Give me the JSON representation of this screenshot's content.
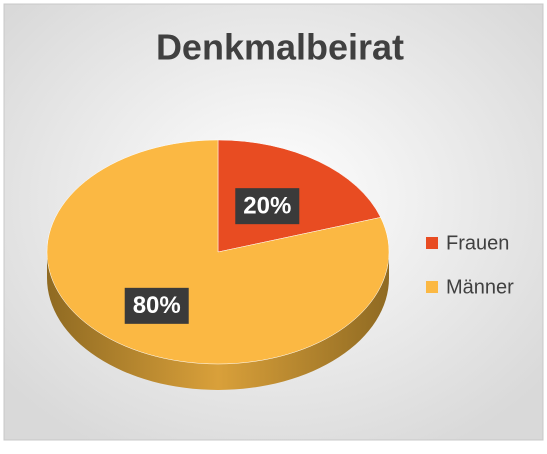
{
  "chart_data": {
    "type": "pie",
    "title": "Denkmalbeirat",
    "categories": [
      "Frauen",
      "Männer"
    ],
    "values": [
      20,
      80
    ],
    "value_labels": [
      "20%",
      "80%"
    ],
    "colors": [
      "#e84c22",
      "#fbb843"
    ],
    "legend": "right"
  }
}
